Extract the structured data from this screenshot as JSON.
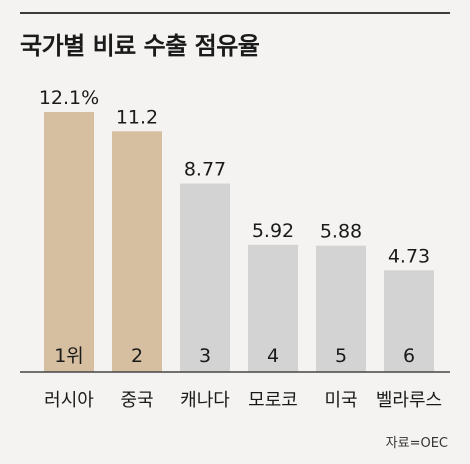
{
  "title": "국가별 비료 수출 점유율",
  "source": "자료=OEC",
  "colors": {
    "highlight": "#d6bfa0",
    "normal": "#d3d3d3",
    "baseline": "#444444"
  },
  "chart_data": {
    "type": "bar",
    "categories": [
      "러시아",
      "중국",
      "캐나다",
      "모로코",
      "미국",
      "벨라루스"
    ],
    "values": [
      12.1,
      11.2,
      8.77,
      5.92,
      5.88,
      4.73
    ],
    "value_labels": [
      "12.1%",
      "11.2",
      "8.77",
      "5.92",
      "5.88",
      "4.73"
    ],
    "rank_labels": [
      "1위",
      "2",
      "3",
      "4",
      "5",
      "6"
    ],
    "highlighted": [
      true,
      true,
      false,
      false,
      false,
      false
    ],
    "title": "국가별 비료 수출 점유율",
    "xlabel": "",
    "ylabel": "",
    "ylim": [
      0,
      12.1
    ],
    "grid": false
  }
}
